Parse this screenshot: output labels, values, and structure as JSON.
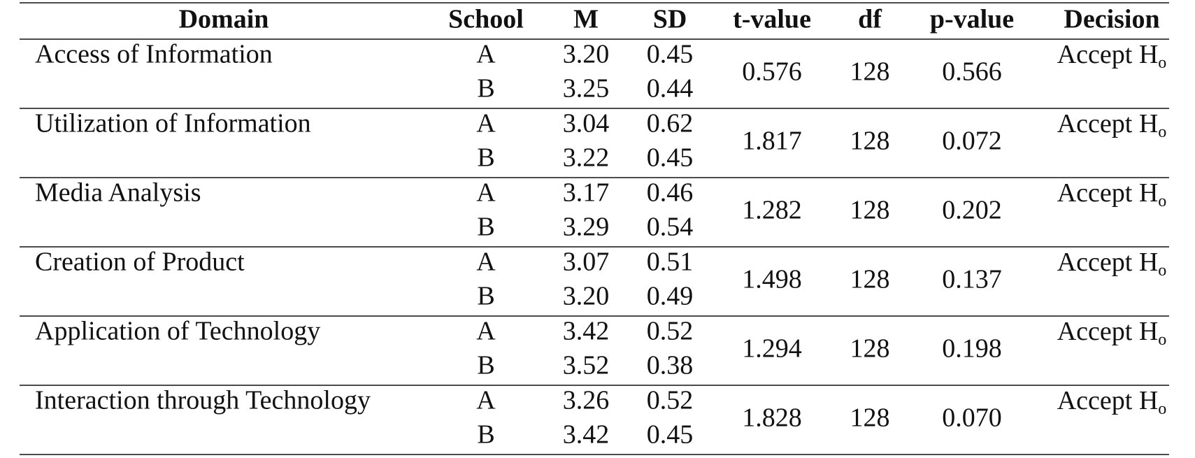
{
  "table": {
    "columns": [
      "Domain",
      "School",
      "M",
      "SD",
      "t-value",
      "df",
      "p-value",
      "Decision"
    ],
    "rows": [
      {
        "domain": "Access of Information",
        "groups": [
          {
            "school": "A",
            "m": "3.20",
            "sd": "0.45"
          },
          {
            "school": "B",
            "m": "3.25",
            "sd": "0.44"
          }
        ],
        "t": "0.576",
        "df": "128",
        "p": "0.566",
        "decision": {
          "text": "Accept H",
          "sub": "o"
        }
      },
      {
        "domain": "Utilization of Information",
        "groups": [
          {
            "school": "A",
            "m": "3.04",
            "sd": "0.62"
          },
          {
            "school": "B",
            "m": "3.22",
            "sd": "0.45"
          }
        ],
        "t": "1.817",
        "df": "128",
        "p": "0.072",
        "decision": {
          "text": "Accept H",
          "sub": "o"
        }
      },
      {
        "domain": "Media Analysis",
        "groups": [
          {
            "school": "A",
            "m": "3.17",
            "sd": "0.46"
          },
          {
            "school": "B",
            "m": "3.29",
            "sd": "0.54"
          }
        ],
        "t": "1.282",
        "df": "128",
        "p": "0.202",
        "decision": {
          "text": "Accept H",
          "sub": "o"
        }
      },
      {
        "domain": "Creation of Product",
        "groups": [
          {
            "school": "A",
            "m": "3.07",
            "sd": "0.51"
          },
          {
            "school": "B",
            "m": "3.20",
            "sd": "0.49"
          }
        ],
        "t": "1.498",
        "df": "128",
        "p": "0.137",
        "decision": {
          "text": "Accept H",
          "sub": "o"
        }
      },
      {
        "domain": "Application of Technology",
        "groups": [
          {
            "school": "A",
            "m": "3.42",
            "sd": "0.52"
          },
          {
            "school": "B",
            "m": "3.52",
            "sd": "0.38"
          }
        ],
        "t": "1.294",
        "df": "128",
        "p": "0.198",
        "decision": {
          "text": "Accept H",
          "sub": "o"
        }
      },
      {
        "domain": "Interaction through Technology",
        "groups": [
          {
            "school": "A",
            "m": "3.26",
            "sd": "0.52"
          },
          {
            "school": "B",
            "m": "3.42",
            "sd": "0.45"
          }
        ],
        "t": "1.828",
        "df": "128",
        "p": "0.070",
        "decision": {
          "text": "Accept H",
          "sub": "o"
        }
      }
    ]
  }
}
